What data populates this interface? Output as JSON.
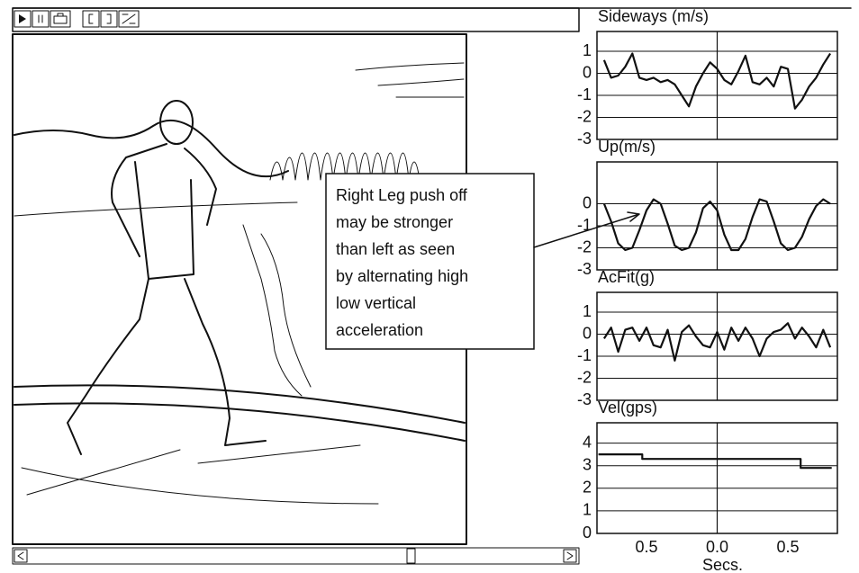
{
  "annotation": {
    "lines": [
      "Right Leg push off",
      "may be stronger",
      "than left as seen",
      "by alternating high",
      "low vertical",
      "acceleration"
    ]
  },
  "chart_data": [
    {
      "type": "line",
      "title": "Sideways (m/s)",
      "xlim": [
        -0.85,
        0.85
      ],
      "ylim": [
        -3,
        1.9
      ],
      "yticks": [
        -3,
        -2,
        -1,
        0,
        1
      ],
      "grid": true,
      "vline": 0,
      "color": "#111111",
      "x": [
        -0.8,
        -0.75,
        -0.7,
        -0.65,
        -0.6,
        -0.55,
        -0.5,
        -0.45,
        -0.4,
        -0.35,
        -0.3,
        -0.25,
        -0.2,
        -0.15,
        -0.1,
        -0.05,
        0,
        0.05,
        0.1,
        0.15,
        0.2,
        0.25,
        0.3,
        0.35,
        0.4,
        0.45,
        0.5,
        0.55,
        0.6,
        0.65,
        0.7,
        0.75,
        0.8
      ],
      "values": [
        0.6,
        -0.2,
        -0.1,
        0.3,
        0.9,
        -0.2,
        -0.3,
        -0.2,
        -0.4,
        -0.3,
        -0.5,
        -1.0,
        -1.5,
        -0.6,
        0.0,
        0.5,
        0.2,
        -0.3,
        -0.5,
        0.1,
        0.8,
        -0.4,
        -0.5,
        -0.2,
        -0.6,
        0.3,
        0.2,
        -1.6,
        -1.2,
        -0.6,
        -0.2,
        0.4,
        0.9
      ]
    },
    {
      "type": "line",
      "title": "Up(m/s)",
      "xlim": [
        -0.85,
        0.85
      ],
      "ylim": [
        -3,
        1.9
      ],
      "yticks": [
        -3,
        -2,
        -1,
        0
      ],
      "grid": true,
      "vline": 0,
      "color": "#111111",
      "x": [
        -0.8,
        -0.75,
        -0.7,
        -0.65,
        -0.6,
        -0.55,
        -0.5,
        -0.45,
        -0.4,
        -0.35,
        -0.3,
        -0.25,
        -0.2,
        -0.15,
        -0.1,
        -0.05,
        0,
        0.05,
        0.1,
        0.15,
        0.2,
        0.25,
        0.3,
        0.35,
        0.4,
        0.45,
        0.5,
        0.55,
        0.6,
        0.65,
        0.7,
        0.75,
        0.8
      ],
      "values": [
        0.0,
        -0.8,
        -1.8,
        -2.1,
        -2.0,
        -1.2,
        -0.3,
        0.2,
        0.0,
        -0.9,
        -1.9,
        -2.1,
        -2.0,
        -1.3,
        -0.2,
        0.1,
        -0.3,
        -1.4,
        -2.1,
        -2.1,
        -1.6,
        -0.6,
        0.2,
        0.1,
        -0.8,
        -1.8,
        -2.1,
        -2.0,
        -1.5,
        -0.7,
        -0.1,
        0.2,
        0.0
      ]
    },
    {
      "type": "line",
      "title": "AcFit(g)",
      "xlim": [
        -0.85,
        0.85
      ],
      "ylim": [
        -3,
        1.9
      ],
      "yticks": [
        -3,
        -2,
        -1,
        0,
        1
      ],
      "grid": true,
      "vline": 0,
      "color": "#111111",
      "x": [
        -0.8,
        -0.75,
        -0.7,
        -0.65,
        -0.6,
        -0.55,
        -0.5,
        -0.45,
        -0.4,
        -0.35,
        -0.3,
        -0.25,
        -0.2,
        -0.15,
        -0.1,
        -0.05,
        0,
        0.05,
        0.1,
        0.15,
        0.2,
        0.25,
        0.3,
        0.35,
        0.4,
        0.45,
        0.5,
        0.55,
        0.6,
        0.65,
        0.7,
        0.75,
        0.8
      ],
      "values": [
        -0.2,
        0.3,
        -0.8,
        0.2,
        0.3,
        -0.3,
        0.3,
        -0.5,
        -0.6,
        0.2,
        -1.2,
        0.1,
        0.4,
        -0.1,
        -0.5,
        -0.6,
        0.1,
        -0.7,
        0.3,
        -0.3,
        0.3,
        -0.2,
        -1.0,
        -0.2,
        0.1,
        0.2,
        0.5,
        -0.2,
        0.3,
        -0.1,
        -0.6,
        0.2,
        -0.6
      ]
    },
    {
      "type": "line",
      "title": "Vel(gps)",
      "xlim": [
        -0.85,
        0.85
      ],
      "ylim": [
        0,
        4.9
      ],
      "yticks": [
        0,
        1,
        2,
        3,
        4
      ],
      "grid": true,
      "vline": 0,
      "color": "#111111",
      "xticks": [
        {
          "value": -0.5,
          "label": "0.5"
        },
        {
          "value": 0,
          "label": "0.0"
        },
        0.5
      ],
      "xlabel": "Secs.",
      "x": [
        -0.84,
        -0.53,
        -0.53,
        0.59,
        0.59,
        0.81
      ],
      "values": [
        3.5,
        3.5,
        3.3,
        3.3,
        2.9,
        2.9
      ]
    }
  ]
}
